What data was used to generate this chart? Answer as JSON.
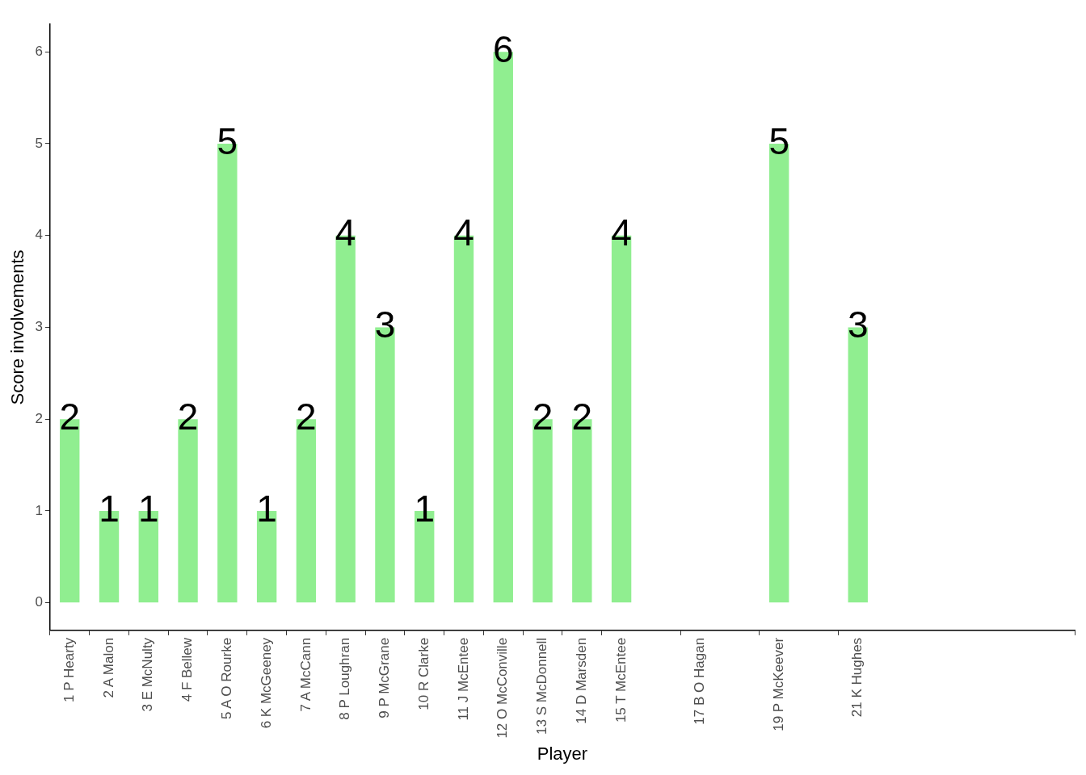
{
  "chart_data": {
    "type": "bar",
    "xlabel": "Player",
    "ylabel": "Score involvements",
    "categories": [
      "1 P Hearty",
      "2 A Malon",
      "3 E McNulty",
      "4 F Bellew",
      "5 A O Rourke",
      "6 K McGeeney",
      "7 A McCann",
      "8 P Loughran",
      "9 P McGrane",
      "10 R Clarke",
      "11 J McEntee",
      "12 O McConville",
      "13 S McDonnell",
      "14 D Marsden",
      "15 T McEntee",
      null,
      "17 B O Hagan",
      null,
      "19 P McKeever",
      null,
      "21 K Hughes",
      null,
      null,
      null,
      null,
      null
    ],
    "values": [
      2,
      1,
      1,
      2,
      5,
      1,
      2,
      4,
      3,
      1,
      4,
      6,
      2,
      2,
      4,
      null,
      null,
      null,
      5,
      null,
      3,
      null,
      null,
      null,
      null,
      null
    ],
    "color": "#90ee90",
    "ylim": [
      -0.3,
      6.3
    ],
    "yticks": [
      0,
      1,
      2,
      3,
      4,
      5,
      6
    ],
    "grid": false,
    "legend": false,
    "data_labels": true
  }
}
